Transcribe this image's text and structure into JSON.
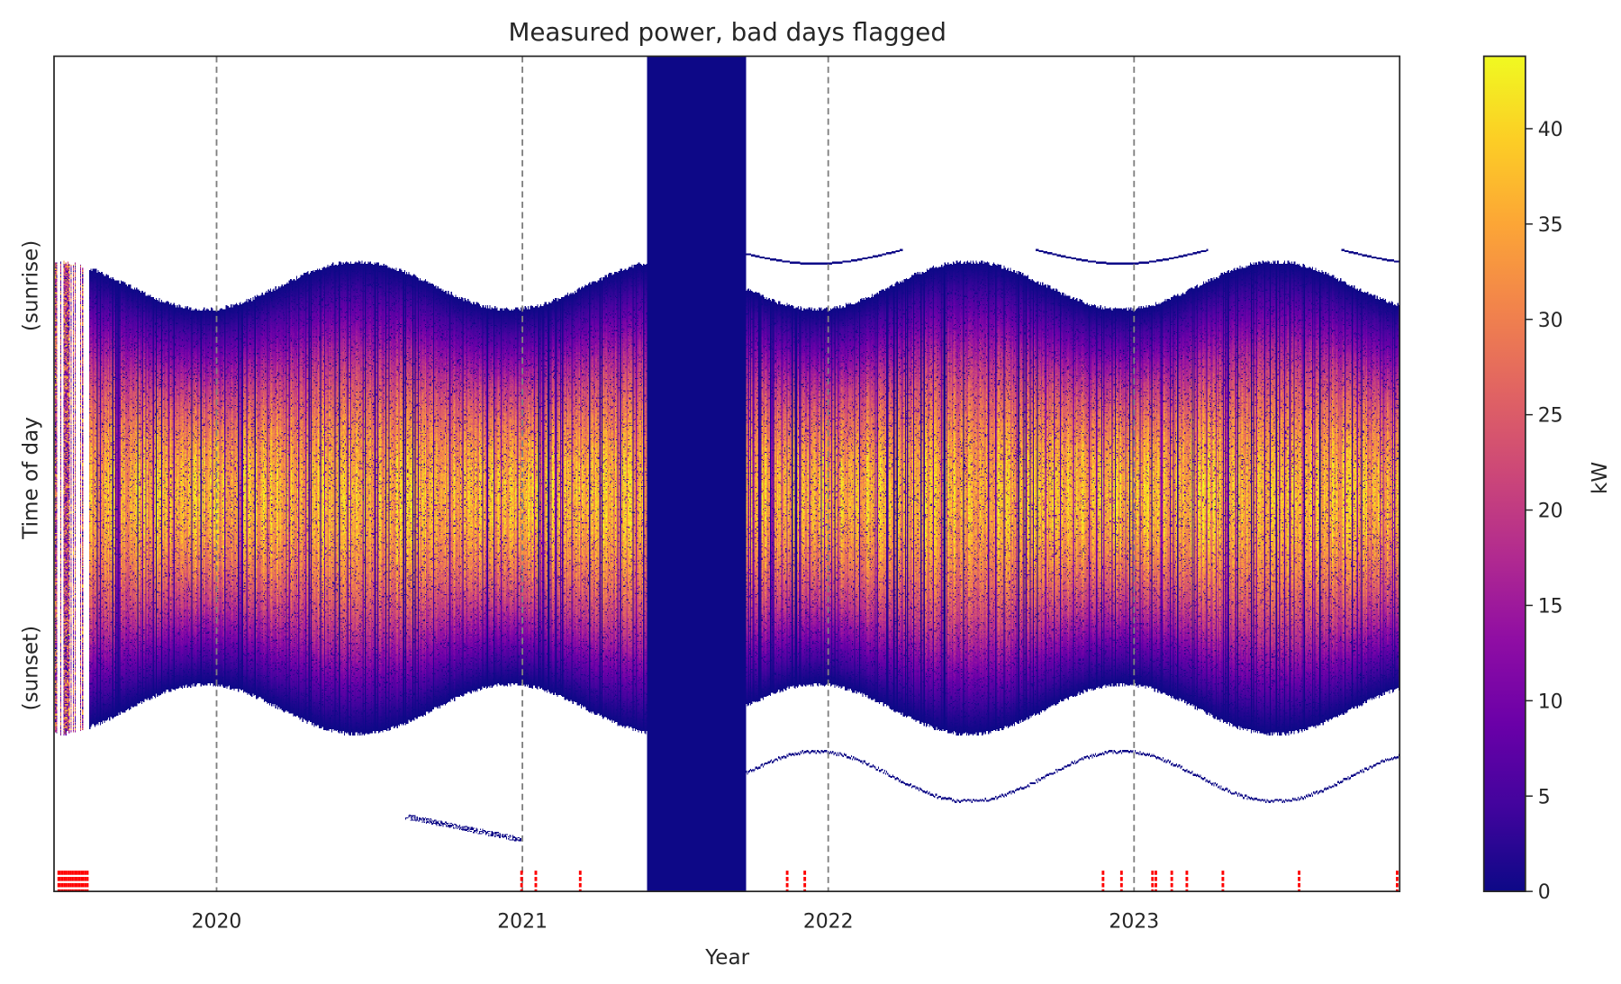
{
  "chart_data": {
    "type": "heatmap",
    "title": "Measured power, bad days flagged",
    "xlabel": "Year",
    "ylabel": "Time of day",
    "ylabel_top": "(sunrise)",
    "ylabel_bottom": "(sunset)",
    "x_range": [
      "2019-06-21",
      "2023-11-14"
    ],
    "x_ticks": [
      {
        "date": "2020-01-01",
        "label": "2020"
      },
      {
        "date": "2021-01-01",
        "label": "2021"
      },
      {
        "date": "2022-01-01",
        "label": "2022"
      },
      {
        "date": "2023-01-01",
        "label": "2023"
      }
    ],
    "year_boundary_lines": "dashed gray at each year start",
    "colorbar": {
      "label": "kW",
      "range": [
        0,
        43.8
      ],
      "ticks": [
        0,
        5,
        10,
        15,
        20,
        25,
        30,
        35,
        40
      ],
      "colormap": "plasma",
      "colors": [
        "#0d0887",
        "#41049d",
        "#6a00a8",
        "#8f0da4",
        "#b12a90",
        "#cc4778",
        "#e16462",
        "#f2844b",
        "#fca636",
        "#fcce25",
        "#f0f921"
      ]
    },
    "peak_power_kw": [
      30,
      44
    ],
    "data_gap_filled_zero": [
      "2021-05-30",
      "2021-09-24"
    ],
    "flag_color": "#ff0000",
    "flagged_range": [
      "2019-06-26",
      "2019-08-02"
    ],
    "flagged_days": [
      "2020-12-31",
      "2021-01-17",
      "2021-03-11",
      "2021-11-13",
      "2021-12-04",
      "2022-11-25",
      "2022-12-17",
      "2023-01-23",
      "2023-01-27",
      "2023-02-15",
      "2023-03-05",
      "2023-04-17",
      "2023-07-17",
      "2023-11-11"
    ]
  }
}
